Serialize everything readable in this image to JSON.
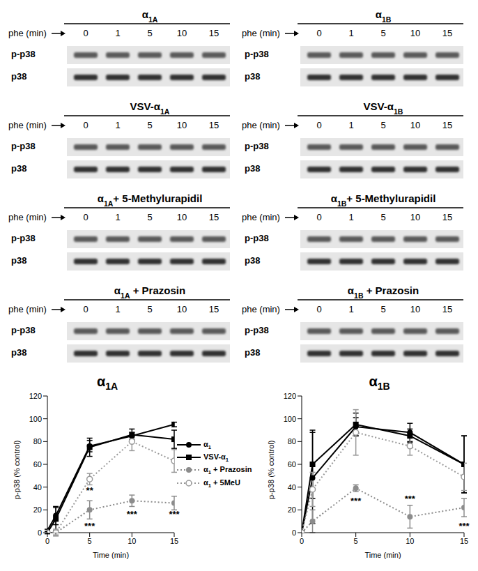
{
  "blots": [
    {
      "title": "α1A",
      "x_label": "phe (min)",
      "lanes": [
        0,
        1,
        5,
        10,
        15
      ],
      "rows": [
        "p-p38",
        "p38"
      ]
    },
    {
      "title": "α1B",
      "x_label": "phe (min)",
      "lanes": [
        0,
        1,
        5,
        10,
        15
      ],
      "rows": [
        "p-p38",
        "p38"
      ]
    },
    {
      "title": "VSV-α1A",
      "x_label": "phe (min)",
      "lanes": [
        0,
        1,
        5,
        10,
        15
      ],
      "rows": [
        "p-p38",
        "p38"
      ]
    },
    {
      "title": "VSV-α1B",
      "x_label": "phe (min)",
      "lanes": [
        0,
        1,
        5,
        10,
        15
      ],
      "rows": [
        "p-p38",
        "p38"
      ]
    },
    {
      "title": "α1A+ 5-Methylurapidil",
      "x_label": "phe (min)",
      "lanes": [
        0,
        1,
        5,
        10,
        15
      ],
      "rows": [
        "p-p38",
        "p38"
      ]
    },
    {
      "title": "α1B+ 5-Methylurapidil",
      "x_label": "phe (min)",
      "lanes": [
        0,
        1,
        5,
        10,
        15
      ],
      "rows": [
        "p-p38",
        "p38"
      ]
    },
    {
      "title": "α1A + Prazosin",
      "x_label": "phe (min)",
      "lanes": [
        0,
        1,
        5,
        10,
        15
      ],
      "rows": [
        "p-p38",
        "p38"
      ]
    },
    {
      "title": "α1B + Prazosin",
      "x_label": "phe (min)",
      "lanes": [
        0,
        1,
        5,
        10,
        15
      ],
      "rows": [
        "p-p38",
        "p38"
      ]
    }
  ],
  "chart_data": [
    {
      "type": "line",
      "title": "α1A",
      "x_label": "Time (min)",
      "y_label": "p-p38 (% control)",
      "x": [
        0,
        1,
        5,
        10,
        15
      ],
      "xlim": [
        0,
        15
      ],
      "xticks": [
        0,
        5,
        10,
        15
      ],
      "ylim": [
        0,
        120
      ],
      "yticks": [
        0,
        20,
        40,
        60,
        80,
        100,
        120
      ],
      "legend": "right",
      "series": [
        {
          "name": "α1",
          "color": "#000000",
          "marker": "circle",
          "line_style": "solid",
          "values": [
            2,
            15,
            76,
            85,
            95
          ],
          "errors": [
            1,
            8,
            5,
            3,
            2
          ]
        },
        {
          "name": "VSV-α1",
          "color": "#000000",
          "marker": "square",
          "line_style": "solid",
          "values": [
            0,
            12,
            75,
            86,
            82
          ],
          "errors": [
            1,
            10,
            8,
            5,
            8
          ]
        },
        {
          "name": "α1 + Prazosin",
          "color": "#8c8c8c",
          "marker": "circle",
          "line_style": "dotted",
          "values": [
            0,
            0,
            20,
            28,
            26
          ],
          "errors": [
            0,
            2,
            8,
            5,
            6
          ]
        },
        {
          "name": "α1 + 5MeU",
          "color": "#999999",
          "marker": "open_circle",
          "line_style": "dotted",
          "values": [
            0,
            0,
            47,
            80,
            63
          ],
          "errors": [
            0,
            3,
            5,
            8,
            10
          ]
        }
      ],
      "annotations": [
        {
          "text": "**",
          "x": 5,
          "y": 37
        },
        {
          "text": "***",
          "x": 5,
          "y": 6
        },
        {
          "text": "***",
          "x": 10,
          "y": 16
        },
        {
          "text": "***",
          "x": 15,
          "y": 16
        }
      ]
    },
    {
      "type": "line",
      "title": "α1B",
      "x_label": "Time (min)",
      "y_label": "p-p38 (% control)",
      "x": [
        0,
        1,
        5,
        10,
        15
      ],
      "xlim": [
        0,
        15
      ],
      "xticks": [
        0,
        5,
        10,
        15
      ],
      "ylim": [
        0,
        120
      ],
      "yticks": [
        0,
        20,
        40,
        60,
        80,
        100,
        120
      ],
      "series": [
        {
          "name": "α1",
          "color": "#000000",
          "marker": "circle",
          "line_style": "solid",
          "values": [
            0,
            48,
            93,
            88,
            60
          ],
          "errors": [
            0,
            40,
            8,
            8,
            25
          ]
        },
        {
          "name": "VSV-α1",
          "color": "#000000",
          "marker": "square",
          "line_style": "solid",
          "values": [
            0,
            60,
            95,
            85,
            60
          ],
          "errors": [
            0,
            30,
            10,
            6,
            25
          ]
        },
        {
          "name": "α1 + Prazosin",
          "color": "#8c8c8c",
          "marker": "circle",
          "line_style": "dotted",
          "values": [
            0,
            10,
            39,
            14,
            22
          ],
          "errors": [
            0,
            10,
            3,
            10,
            8
          ]
        },
        {
          "name": "α1 + 5MeU",
          "color": "#999999",
          "marker": "open_circle",
          "line_style": "dotted",
          "values": [
            0,
            38,
            88,
            76,
            49
          ],
          "errors": [
            0,
            15,
            20,
            8,
            12
          ]
        }
      ],
      "annotations": [
        {
          "text": "***",
          "x": 5,
          "y": 28
        },
        {
          "text": "***",
          "x": 10,
          "y": 30
        },
        {
          "text": "***",
          "x": 15,
          "y": 6
        }
      ]
    }
  ]
}
